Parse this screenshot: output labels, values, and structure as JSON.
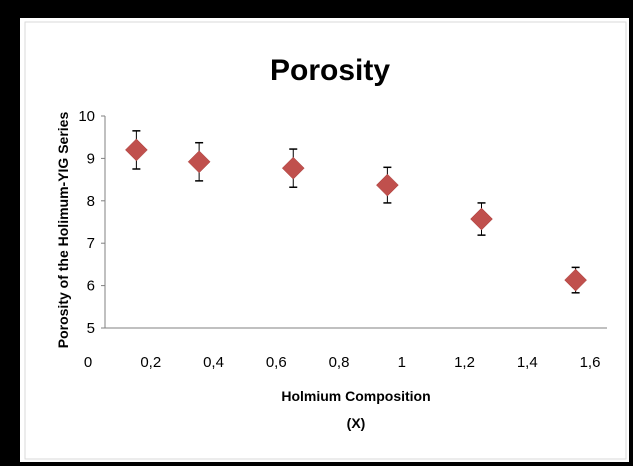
{
  "chart_data": {
    "type": "scatter",
    "title": "Porosity",
    "xlabel_line1": "Holmium Composition",
    "xlabel_line2": "(X)",
    "ylabel": "Porosity of the Holimum-YIG Series",
    "xlim": [
      0,
      1.6
    ],
    "ylim": [
      5,
      10
    ],
    "x_ticks": [
      "0",
      "0,2",
      "0,4",
      "0,6",
      "0,8",
      "1",
      "1,2",
      "1,4",
      "1,6"
    ],
    "y_ticks": [
      "5",
      "6",
      "7",
      "8",
      "9",
      "10"
    ],
    "grid": false,
    "series": [
      {
        "marker": "diamond",
        "color": "#c0504d",
        "points": [
          {
            "x": 0.1,
            "y": 9.2,
            "err": 0.45
          },
          {
            "x": 0.3,
            "y": 8.92,
            "err": 0.45
          },
          {
            "x": 0.6,
            "y": 8.77,
            "err": 0.45
          },
          {
            "x": 0.9,
            "y": 8.37,
            "err": 0.42
          },
          {
            "x": 1.2,
            "y": 7.57,
            "err": 0.38
          },
          {
            "x": 1.5,
            "y": 6.13,
            "err": 0.3
          }
        ]
      }
    ]
  }
}
